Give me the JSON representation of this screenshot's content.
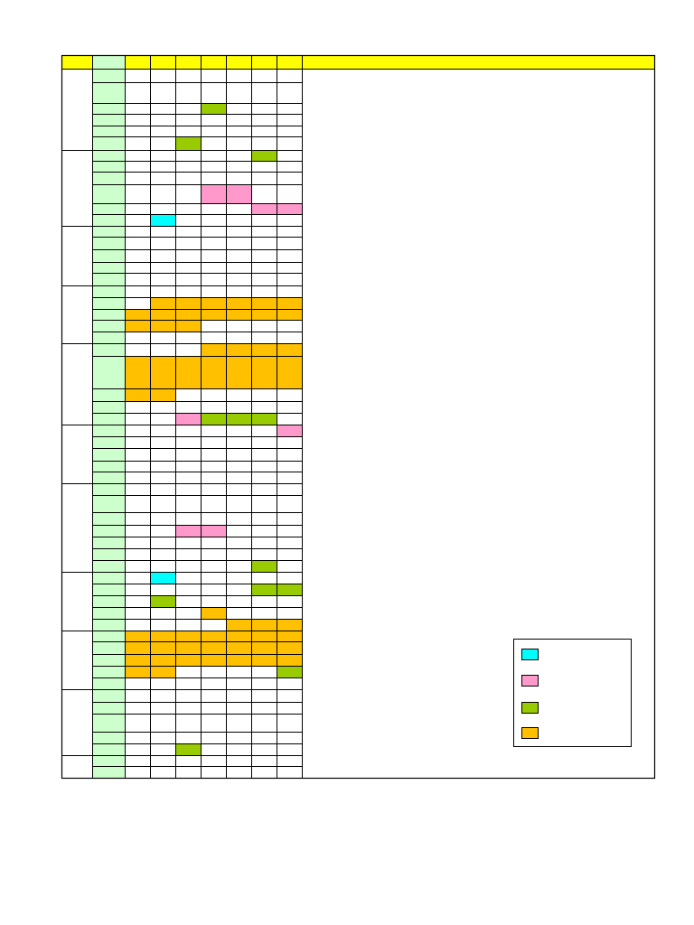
{
  "colors": {
    "header": "#ffff00",
    "name_column": "#ccffcc",
    "cyan": "#00ffff",
    "pink": "#ff99cc",
    "green": "#99cc00",
    "orange": "#ffc000",
    "grid": "#000000"
  },
  "table": {
    "header_cells": [
      "",
      "",
      "",
      "",
      "",
      "",
      "",
      "",
      ""
    ],
    "groups": [
      {
        "label": "",
        "rows": 6
      },
      {
        "label": "",
        "rows": 6
      },
      {
        "label": "",
        "rows": 5
      },
      {
        "label": "",
        "rows": 5
      },
      {
        "label": "",
        "rows": 5
      },
      {
        "label": "",
        "rows": 5
      },
      {
        "label": "",
        "rows": 7
      },
      {
        "label": "",
        "rows": 5
      },
      {
        "label": "",
        "rows": 5
      },
      {
        "label": "",
        "rows": 5
      },
      {
        "label": "",
        "rows": 6
      }
    ],
    "marks": [
      {
        "row": 2,
        "col": 3,
        "color": "green"
      },
      {
        "row": 5,
        "col": 2,
        "color": "green"
      },
      {
        "row": 6,
        "col": 5,
        "color": "green"
      },
      {
        "row": 9,
        "col": 3,
        "color": "pink"
      },
      {
        "row": 9,
        "col": 4,
        "color": "pink"
      },
      {
        "row": 10,
        "col": 5,
        "color": "pink"
      },
      {
        "row": 10,
        "col": 6,
        "color": "pink"
      },
      {
        "row": 11,
        "col": 1,
        "color": "cyan"
      },
      {
        "row": 18,
        "col": 1,
        "color": "orange"
      },
      {
        "row": 18,
        "col": 2,
        "color": "orange"
      },
      {
        "row": 18,
        "col": 3,
        "color": "orange"
      },
      {
        "row": 18,
        "col": 4,
        "color": "orange"
      },
      {
        "row": 18,
        "col": 5,
        "color": "orange"
      },
      {
        "row": 18,
        "col": 6,
        "color": "orange"
      },
      {
        "row": 19,
        "col": 0,
        "color": "orange"
      },
      {
        "row": 19,
        "col": 1,
        "color": "orange"
      },
      {
        "row": 19,
        "col": 2,
        "color": "orange"
      },
      {
        "row": 19,
        "col": 3,
        "color": "orange"
      },
      {
        "row": 19,
        "col": 4,
        "color": "orange"
      },
      {
        "row": 19,
        "col": 5,
        "color": "orange"
      },
      {
        "row": 19,
        "col": 6,
        "color": "orange"
      },
      {
        "row": 20,
        "col": 0,
        "color": "orange"
      },
      {
        "row": 20,
        "col": 1,
        "color": "orange"
      },
      {
        "row": 20,
        "col": 2,
        "color": "orange"
      },
      {
        "row": 22,
        "col": 3,
        "color": "orange"
      },
      {
        "row": 22,
        "col": 4,
        "color": "orange"
      },
      {
        "row": 22,
        "col": 5,
        "color": "orange"
      },
      {
        "row": 22,
        "col": 6,
        "color": "orange"
      },
      {
        "row": 23,
        "col": 0,
        "color": "orange"
      },
      {
        "row": 23,
        "col": 1,
        "color": "orange"
      },
      {
        "row": 23,
        "col": 2,
        "color": "orange"
      },
      {
        "row": 23,
        "col": 3,
        "color": "orange"
      },
      {
        "row": 23,
        "col": 4,
        "color": "orange"
      },
      {
        "row": 23,
        "col": 5,
        "color": "orange"
      },
      {
        "row": 23,
        "col": 6,
        "color": "orange"
      },
      {
        "row": 24,
        "col": 0,
        "color": "orange"
      },
      {
        "row": 24,
        "col": 1,
        "color": "orange"
      },
      {
        "row": 26,
        "col": 2,
        "color": "pink"
      },
      {
        "row": 26,
        "col": 3,
        "color": "green"
      },
      {
        "row": 26,
        "col": 4,
        "color": "green"
      },
      {
        "row": 26,
        "col": 5,
        "color": "green"
      },
      {
        "row": 27,
        "col": 6,
        "color": "pink"
      },
      {
        "row": 35,
        "col": 2,
        "color": "pink"
      },
      {
        "row": 35,
        "col": 3,
        "color": "pink"
      },
      {
        "row": 38,
        "col": 5,
        "color": "green"
      },
      {
        "row": 39,
        "col": 1,
        "color": "cyan"
      },
      {
        "row": 40,
        "col": 5,
        "color": "green"
      },
      {
        "row": 40,
        "col": 6,
        "color": "green"
      },
      {
        "row": 41,
        "col": 1,
        "color": "green"
      },
      {
        "row": 42,
        "col": 3,
        "color": "orange"
      },
      {
        "row": 43,
        "col": 4,
        "color": "orange"
      },
      {
        "row": 43,
        "col": 5,
        "color": "orange"
      },
      {
        "row": 43,
        "col": 6,
        "color": "orange"
      },
      {
        "row": 44,
        "col": 0,
        "color": "orange"
      },
      {
        "row": 44,
        "col": 1,
        "color": "orange"
      },
      {
        "row": 44,
        "col": 2,
        "color": "orange"
      },
      {
        "row": 44,
        "col": 3,
        "color": "orange"
      },
      {
        "row": 44,
        "col": 4,
        "color": "orange"
      },
      {
        "row": 44,
        "col": 5,
        "color": "orange"
      },
      {
        "row": 44,
        "col": 6,
        "color": "orange"
      },
      {
        "row": 45,
        "col": 0,
        "color": "orange"
      },
      {
        "row": 45,
        "col": 1,
        "color": "orange"
      },
      {
        "row": 45,
        "col": 2,
        "color": "orange"
      },
      {
        "row": 45,
        "col": 3,
        "color": "orange"
      },
      {
        "row": 45,
        "col": 4,
        "color": "orange"
      },
      {
        "row": 45,
        "col": 5,
        "color": "orange"
      },
      {
        "row": 45,
        "col": 6,
        "color": "orange"
      },
      {
        "row": 46,
        "col": 0,
        "color": "orange"
      },
      {
        "row": 46,
        "col": 1,
        "color": "orange"
      },
      {
        "row": 46,
        "col": 2,
        "color": "orange"
      },
      {
        "row": 46,
        "col": 3,
        "color": "orange"
      },
      {
        "row": 46,
        "col": 4,
        "color": "orange"
      },
      {
        "row": 46,
        "col": 5,
        "color": "orange"
      },
      {
        "row": 46,
        "col": 6,
        "color": "orange"
      },
      {
        "row": 47,
        "col": 0,
        "color": "orange"
      },
      {
        "row": 47,
        "col": 1,
        "color": "orange"
      },
      {
        "row": 47,
        "col": 6,
        "color": "green"
      },
      {
        "row": 53,
        "col": 2,
        "color": "green"
      }
    ]
  },
  "legend": {
    "items": [
      {
        "color": "cyan",
        "label": ""
      },
      {
        "color": "pink",
        "label": ""
      },
      {
        "color": "green",
        "label": ""
      },
      {
        "color": "orange",
        "label": ""
      }
    ]
  }
}
